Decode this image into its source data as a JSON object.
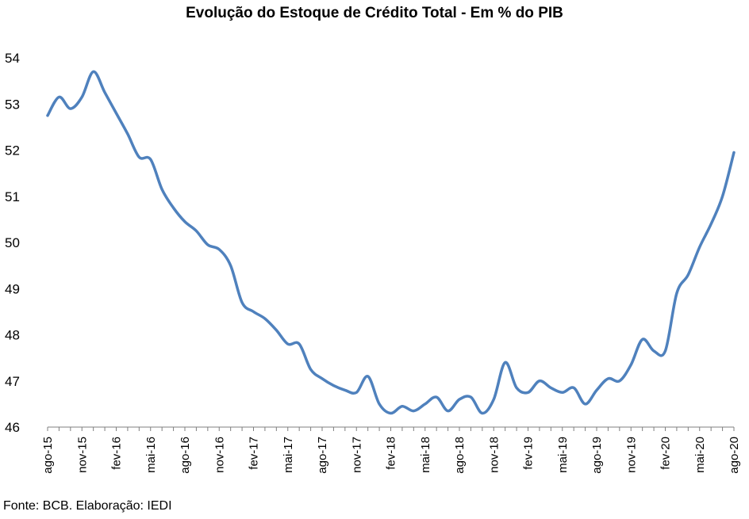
{
  "chart_data": {
    "type": "line",
    "title": "Evolução do Estoque de Crédito Total - Em % do PIB",
    "xlabel": "",
    "ylabel": "",
    "ylim": [
      46,
      54
    ],
    "yticks": [
      46,
      47,
      48,
      49,
      50,
      51,
      52,
      53,
      54
    ],
    "grid": false,
    "legend": "none",
    "line_color": "#4F81BD",
    "tick_labels": [
      "ago-15",
      "nov-15",
      "fev-16",
      "mai-16",
      "ago-16",
      "nov-16",
      "fev-17",
      "mai-17",
      "ago-17",
      "nov-17",
      "fev-18",
      "mai-18",
      "ago-18",
      "nov-18",
      "fev-19",
      "mai-19",
      "ago-19",
      "nov-19",
      "fev-20",
      "mai-20",
      "ago-20"
    ],
    "x": [
      "ago-15",
      "set-15",
      "out-15",
      "nov-15",
      "dez-15",
      "jan-16",
      "fev-16",
      "mar-16",
      "abr-16",
      "mai-16",
      "jun-16",
      "jul-16",
      "ago-16",
      "set-16",
      "out-16",
      "nov-16",
      "dez-16",
      "jan-17",
      "fev-17",
      "mar-17",
      "abr-17",
      "mai-17",
      "jun-17",
      "jul-17",
      "ago-17",
      "set-17",
      "out-17",
      "nov-17",
      "dez-17",
      "jan-18",
      "fev-18",
      "mar-18",
      "abr-18",
      "mai-18",
      "jun-18",
      "jul-18",
      "ago-18",
      "set-18",
      "out-18",
      "nov-18",
      "dez-18",
      "jan-19",
      "fev-19",
      "mar-19",
      "abr-19",
      "mai-19",
      "jun-19",
      "jul-19",
      "ago-19",
      "set-19",
      "out-19",
      "nov-19",
      "dez-19",
      "jan-20",
      "fev-20",
      "mar-20",
      "abr-20",
      "mai-20",
      "jun-20",
      "jul-20",
      "ago-20"
    ],
    "series": [
      {
        "values": [
          52.75,
          53.15,
          52.9,
          53.15,
          53.7,
          53.25,
          52.8,
          52.35,
          51.85,
          51.8,
          51.15,
          50.75,
          50.45,
          50.25,
          49.95,
          49.85,
          49.5,
          48.7,
          48.5,
          48.35,
          48.1,
          47.8,
          47.8,
          47.25,
          47.05,
          46.9,
          46.8,
          46.75,
          47.1,
          46.5,
          46.3,
          46.45,
          46.35,
          46.5,
          46.65,
          46.35,
          46.6,
          46.65,
          46.3,
          46.6,
          47.4,
          46.85,
          46.75,
          47.0,
          46.85,
          46.75,
          46.85,
          46.5,
          46.8,
          47.05,
          47.0,
          47.35,
          47.9,
          47.65,
          47.65,
          48.9,
          49.3,
          49.9,
          50.4,
          51.0,
          51.95
        ]
      }
    ]
  },
  "source_note": "Fonte: BCB. Elaboração: IEDI"
}
